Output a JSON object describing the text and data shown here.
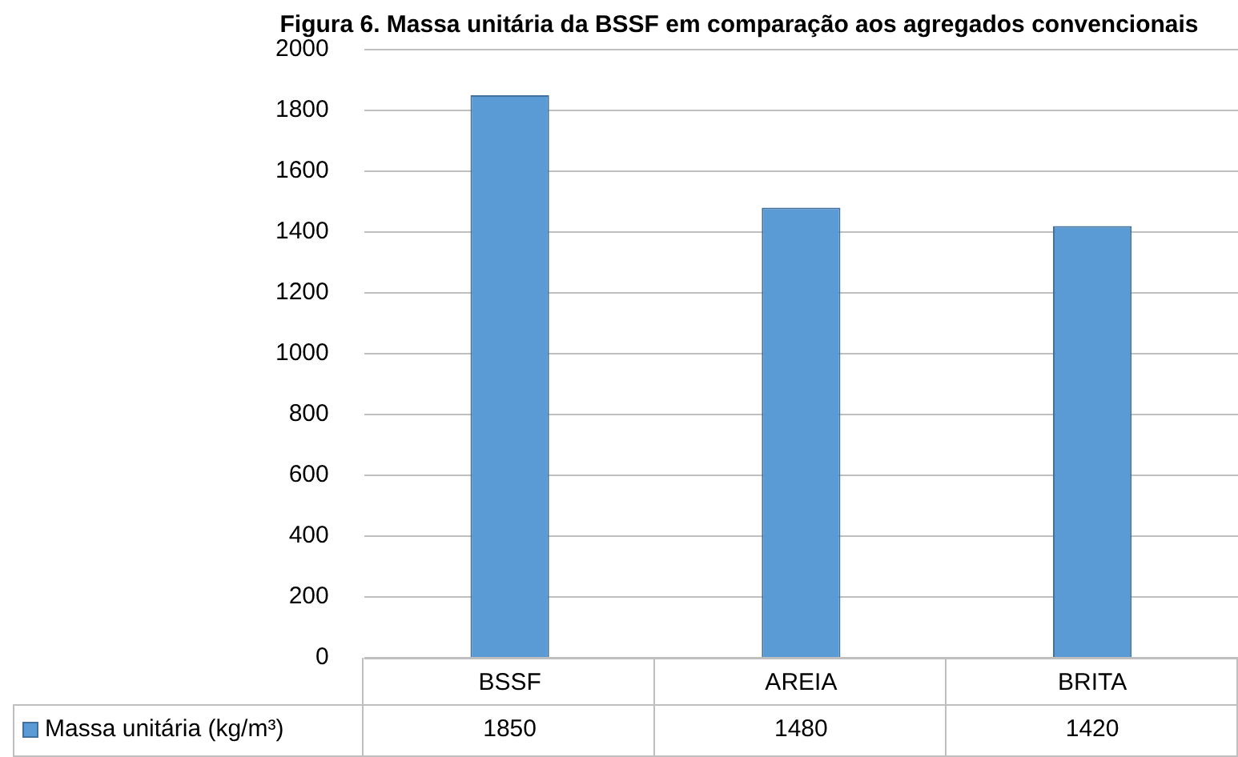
{
  "chart_data": {
    "type": "bar",
    "title": "Figura 6. Massa unitária da BSSF em comparação aos agregados convencionais",
    "categories": [
      "BSSF",
      "AREIA",
      "BRITA"
    ],
    "series": [
      {
        "name": "Massa unitária (kg/m³)",
        "color": "#5b9bd5",
        "values": [
          1850,
          1480,
          1420
        ]
      }
    ],
    "ylim": [
      0,
      2000
    ],
    "yticks": [
      0,
      200,
      400,
      600,
      800,
      1000,
      1200,
      1400,
      1600,
      1800,
      2000
    ],
    "grid": "y",
    "legend": "bottom",
    "data_labels": true
  }
}
